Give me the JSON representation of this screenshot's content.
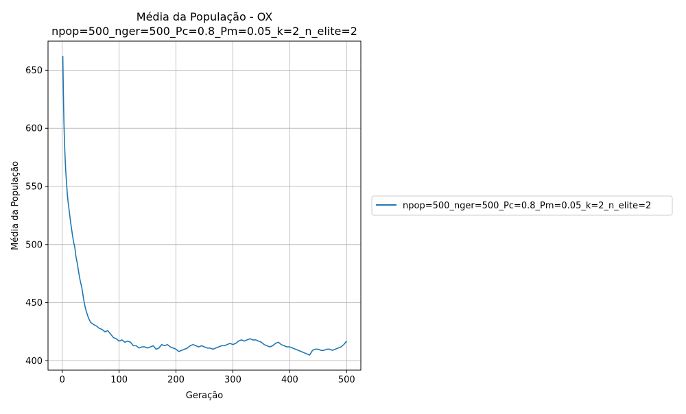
{
  "chart_data": {
    "type": "line",
    "title": "Média da População - OX",
    "subtitle": "npop=500_nger=500_Pc=0.8_Pm=0.05_k=2_n_elite=2",
    "xlabel": "Geração",
    "ylabel": "Média da População",
    "xlim": [
      -25,
      525
    ],
    "ylim": [
      392,
      675
    ],
    "x_ticks": [
      0,
      100,
      200,
      300,
      400,
      500
    ],
    "y_ticks": [
      400,
      450,
      500,
      550,
      600,
      650
    ],
    "grid": true,
    "legend_position": "right-outside",
    "series": [
      {
        "name": "npop=500_nger=500_Pc=0.8_Pm=0.05_k=2_n_elite=2",
        "color": "#1f77b4",
        "x": [
          1,
          2,
          3,
          4,
          5,
          6,
          7,
          8,
          9,
          10,
          12,
          14,
          16,
          18,
          20,
          22,
          24,
          26,
          28,
          30,
          32,
          34,
          36,
          38,
          40,
          42,
          44,
          46,
          48,
          50,
          53,
          56,
          60,
          65,
          70,
          75,
          80,
          85,
          90,
          95,
          100,
          105,
          110,
          115,
          120,
          125,
          130,
          135,
          140,
          145,
          150,
          155,
          160,
          165,
          170,
          175,
          180,
          185,
          190,
          195,
          200,
          205,
          210,
          215,
          220,
          225,
          230,
          235,
          240,
          245,
          250,
          255,
          260,
          265,
          270,
          275,
          280,
          285,
          290,
          295,
          300,
          305,
          310,
          315,
          320,
          325,
          330,
          335,
          340,
          345,
          350,
          355,
          360,
          365,
          370,
          375,
          380,
          385,
          390,
          395,
          400,
          405,
          410,
          415,
          420,
          425,
          430,
          435,
          440,
          445,
          450,
          455,
          460,
          465,
          470,
          475,
          480,
          485,
          490,
          495,
          500
        ],
        "values": [
          662,
          630,
          605,
          588,
          575,
          565,
          557,
          550,
          543,
          538,
          530,
          522,
          515,
          508,
          502,
          498,
          490,
          485,
          479,
          473,
          468,
          464,
          458,
          452,
          447,
          443,
          440,
          437,
          435,
          433,
          432,
          431,
          430,
          428,
          427,
          425,
          426,
          423,
          420,
          419,
          417,
          418,
          416,
          417,
          416,
          413,
          413,
          411,
          412,
          412,
          411,
          412,
          413,
          410,
          411,
          414,
          413,
          414,
          412,
          411,
          410,
          408,
          409,
          410,
          411,
          413,
          414,
          413,
          412,
          413,
          412,
          411,
          411,
          410,
          411,
          412,
          413,
          413,
          414,
          415,
          414,
          415,
          417,
          418,
          417,
          418,
          419,
          418,
          418,
          417,
          416,
          414,
          413,
          412,
          413,
          415,
          416,
          414,
          413,
          412,
          412,
          411,
          410,
          409,
          408,
          407,
          406,
          405,
          409,
          410,
          410,
          409,
          409,
          410,
          410,
          409,
          410,
          411,
          412,
          414,
          417
        ]
      }
    ]
  }
}
